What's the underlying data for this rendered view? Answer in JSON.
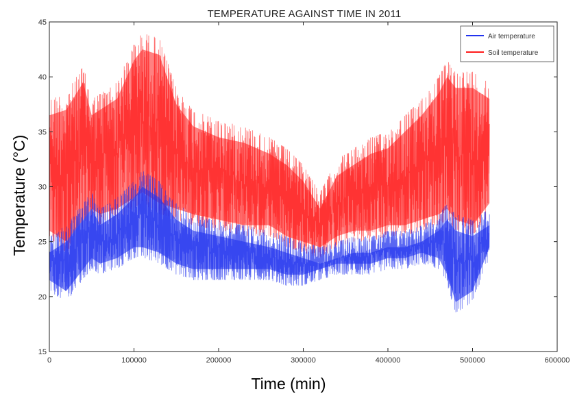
{
  "chart_data": {
    "type": "line",
    "title": "TEMPERATURE AGAINST TIME IN 2011",
    "xlabel": "Time (min)",
    "ylabel": "Temperature (°C)",
    "xlim": [
      0,
      600000
    ],
    "ylim": [
      15,
      45
    ],
    "x_ticks": [
      "0",
      "100000",
      "200000",
      "300000",
      "400000",
      "500000",
      "600000"
    ],
    "y_ticks": [
      "15",
      "20",
      "25",
      "30",
      "35",
      "40",
      "45"
    ],
    "grid": false,
    "legend_position": "top-right",
    "series": [
      {
        "name": "Air temperature",
        "color": "#2233ee",
        "x": [
          0,
          20000,
          40000,
          50000,
          60000,
          80000,
          100000,
          110000,
          130000,
          150000,
          170000,
          200000,
          230000,
          260000,
          280000,
          300000,
          320000,
          340000,
          360000,
          380000,
          400000,
          420000,
          440000,
          460000,
          470000,
          480000,
          500000,
          520000
        ],
        "low": [
          20.5,
          19.5,
          21.5,
          22.5,
          22.0,
          22.5,
          23.5,
          23.5,
          23.0,
          22.0,
          21.5,
          21.5,
          21.5,
          21.5,
          21.0,
          21.0,
          21.5,
          22.0,
          22.0,
          22.0,
          22.5,
          22.5,
          23.0,
          22.5,
          21.0,
          18.5,
          19.5,
          23.5
        ],
        "high": [
          25.5,
          26.5,
          28.5,
          29.5,
          28.0,
          29.0,
          30.5,
          31.5,
          30.5,
          28.5,
          27.5,
          27.0,
          26.5,
          26.0,
          25.5,
          25.0,
          24.5,
          25.0,
          25.5,
          25.5,
          26.0,
          26.0,
          26.5,
          27.5,
          28.5,
          27.5,
          27.0,
          28.0
        ]
      },
      {
        "name": "Soil temperature",
        "color": "#ff1a1a",
        "x": [
          0,
          20000,
          40000,
          50000,
          60000,
          80000,
          100000,
          110000,
          130000,
          150000,
          170000,
          200000,
          230000,
          260000,
          280000,
          300000,
          320000,
          340000,
          360000,
          380000,
          400000,
          420000,
          440000,
          460000,
          470000,
          480000,
          500000,
          520000
        ],
        "low": [
          25.0,
          24.0,
          26.0,
          27.0,
          26.5,
          27.0,
          28.0,
          28.5,
          27.5,
          27.0,
          26.5,
          26.0,
          25.5,
          25.5,
          24.5,
          24.0,
          23.5,
          24.5,
          25.0,
          25.0,
          25.5,
          25.5,
          26.0,
          26.5,
          27.0,
          26.0,
          25.5,
          27.5
        ],
        "high": [
          38.0,
          38.5,
          41.0,
          38.0,
          38.5,
          39.5,
          43.0,
          44.0,
          43.5,
          39.0,
          37.0,
          36.0,
          35.5,
          34.5,
          33.5,
          32.0,
          29.5,
          32.5,
          33.5,
          34.5,
          35.0,
          36.5,
          38.0,
          40.0,
          41.5,
          40.5,
          40.5,
          39.5
        ]
      }
    ]
  }
}
